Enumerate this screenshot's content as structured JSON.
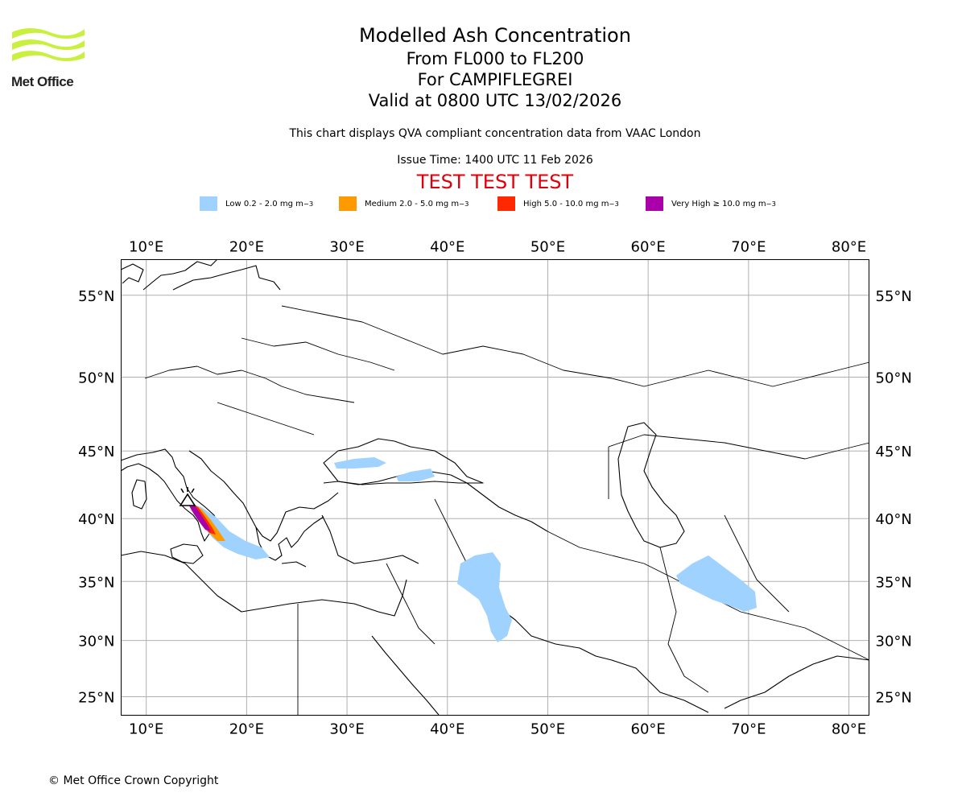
{
  "logo": {
    "text": "Met Office",
    "color": "#c8f03c"
  },
  "title": "Modelled Ash Concentration",
  "subtitle_levels": "From FL000 to FL200",
  "subtitle_volcano": "For CAMPIFLEGREI",
  "subtitle_valid": "Valid at 0800 UTC 13/02/2026",
  "note": "This chart displays QVA compliant concentration data from VAAC London",
  "issue_time": "Issue Time: 1400 UTC 11 Feb 2026",
  "test_banner": "TEST TEST TEST",
  "legend": [
    {
      "label": "Low 0.2 - 2.0 mg m",
      "color": "#a0d2ff"
    },
    {
      "label": "Medium 2.0 - 5.0 mg m",
      "color": "#ff9900"
    },
    {
      "label": "High 5.0 - 10.0 mg m",
      "color": "#ff2800"
    },
    {
      "label": "Very High ≥ 10.0 mg m",
      "color": "#aa00aa"
    }
  ],
  "legend_unit_exponent": "−3",
  "map": {
    "lon_ticks": [
      "10°E",
      "20°E",
      "30°E",
      "40°E",
      "50°E",
      "60°E",
      "70°E",
      "80°E"
    ],
    "lat_ticks": [
      "55°N",
      "50°N",
      "45°N",
      "40°N",
      "35°N",
      "30°N",
      "25°N"
    ],
    "lon_values": [
      10,
      20,
      30,
      40,
      50,
      60,
      70,
      80
    ],
    "lat_values": [
      55,
      50,
      45,
      40,
      35,
      30,
      25
    ],
    "lon_range": [
      7.5,
      82
    ],
    "lat_range": [
      23.3,
      57
    ],
    "gridlines": true
  },
  "copyright": "© Met Office Crown Copyright"
}
